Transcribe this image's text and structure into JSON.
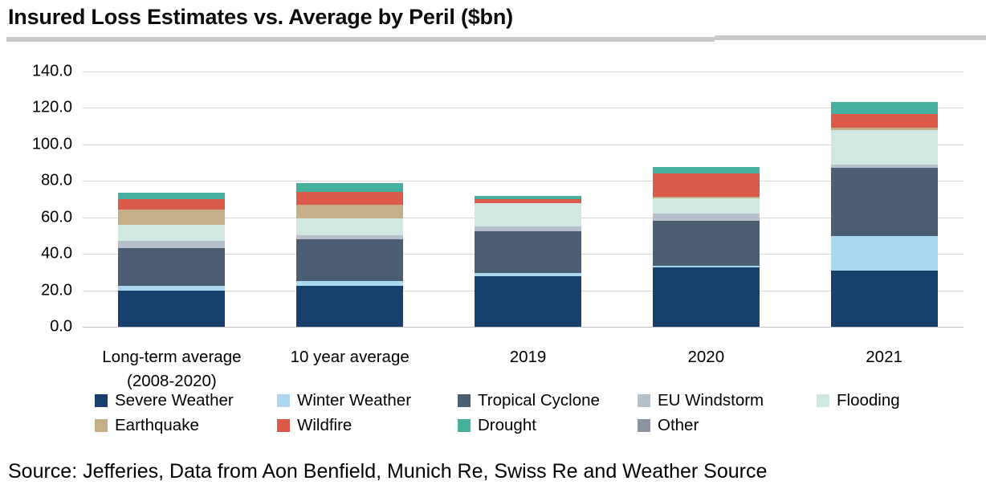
{
  "title": "Insured Loss Estimates vs. Average by Peril ($bn)",
  "source": "Source: Jefferies, Data from Aon Benfield, Munich Re, Swiss Re and Weather Source",
  "chart_data": {
    "type": "bar",
    "stacked": true,
    "title": "Insured Loss Estimates vs. Average by Peril ($bn)",
    "xlabel": "",
    "ylabel": "",
    "ylim": [
      0,
      140
    ],
    "ytick_step": 20,
    "ytick_labels": [
      "0.0",
      "20.0",
      "40.0",
      "60.0",
      "80.0",
      "100.0",
      "120.0",
      "140.0"
    ],
    "grid": true,
    "legend_position": "bottom",
    "categories": [
      "Long-term average\n(2008-2020)",
      "10 year average",
      "2019",
      "2020",
      "2021"
    ],
    "series": [
      {
        "name": "Severe Weather",
        "color": "#17406d",
        "values": [
          20.0,
          22.5,
          27.7,
          32.6,
          30.8
        ]
      },
      {
        "name": "Winter Weather",
        "color": "#a9d8ef",
        "values": [
          2.4,
          2.6,
          1.8,
          0.9,
          18.9
        ]
      },
      {
        "name": "Tropical Cyclone",
        "color": "#4b5e72",
        "values": [
          20.7,
          22.9,
          22.9,
          24.7,
          37.5
        ]
      },
      {
        "name": "EU Windstorm",
        "color": "#b6c0cd",
        "values": [
          4.0,
          2.2,
          2.6,
          4.0,
          1.8
        ]
      },
      {
        "name": "Flooding",
        "color": "#cfe8e1",
        "values": [
          8.8,
          9.3,
          12.8,
          8.4,
          18.9
        ]
      },
      {
        "name": "Earthquake",
        "color": "#c3b08b",
        "values": [
          8.4,
          7.5,
          0.0,
          0.7,
          1.3
        ]
      },
      {
        "name": "Wildfire",
        "color": "#db5948",
        "values": [
          5.7,
          7.0,
          2.2,
          13.0,
          7.5
        ]
      },
      {
        "name": "Drought",
        "color": "#45b09d",
        "values": [
          3.5,
          4.8,
          1.8,
          3.1,
          6.6
        ]
      },
      {
        "name": "Other",
        "color": "#8b93a0",
        "values": [
          0.0,
          0.0,
          0.0,
          0.0,
          0.0
        ]
      }
    ],
    "totals": [
      73.5,
      78.8,
      71.8,
      87.4,
      123.3
    ]
  },
  "colors": {
    "title_rule": "#c9c9c9",
    "gridline": "#d9d9d9",
    "text": "#000000"
  }
}
